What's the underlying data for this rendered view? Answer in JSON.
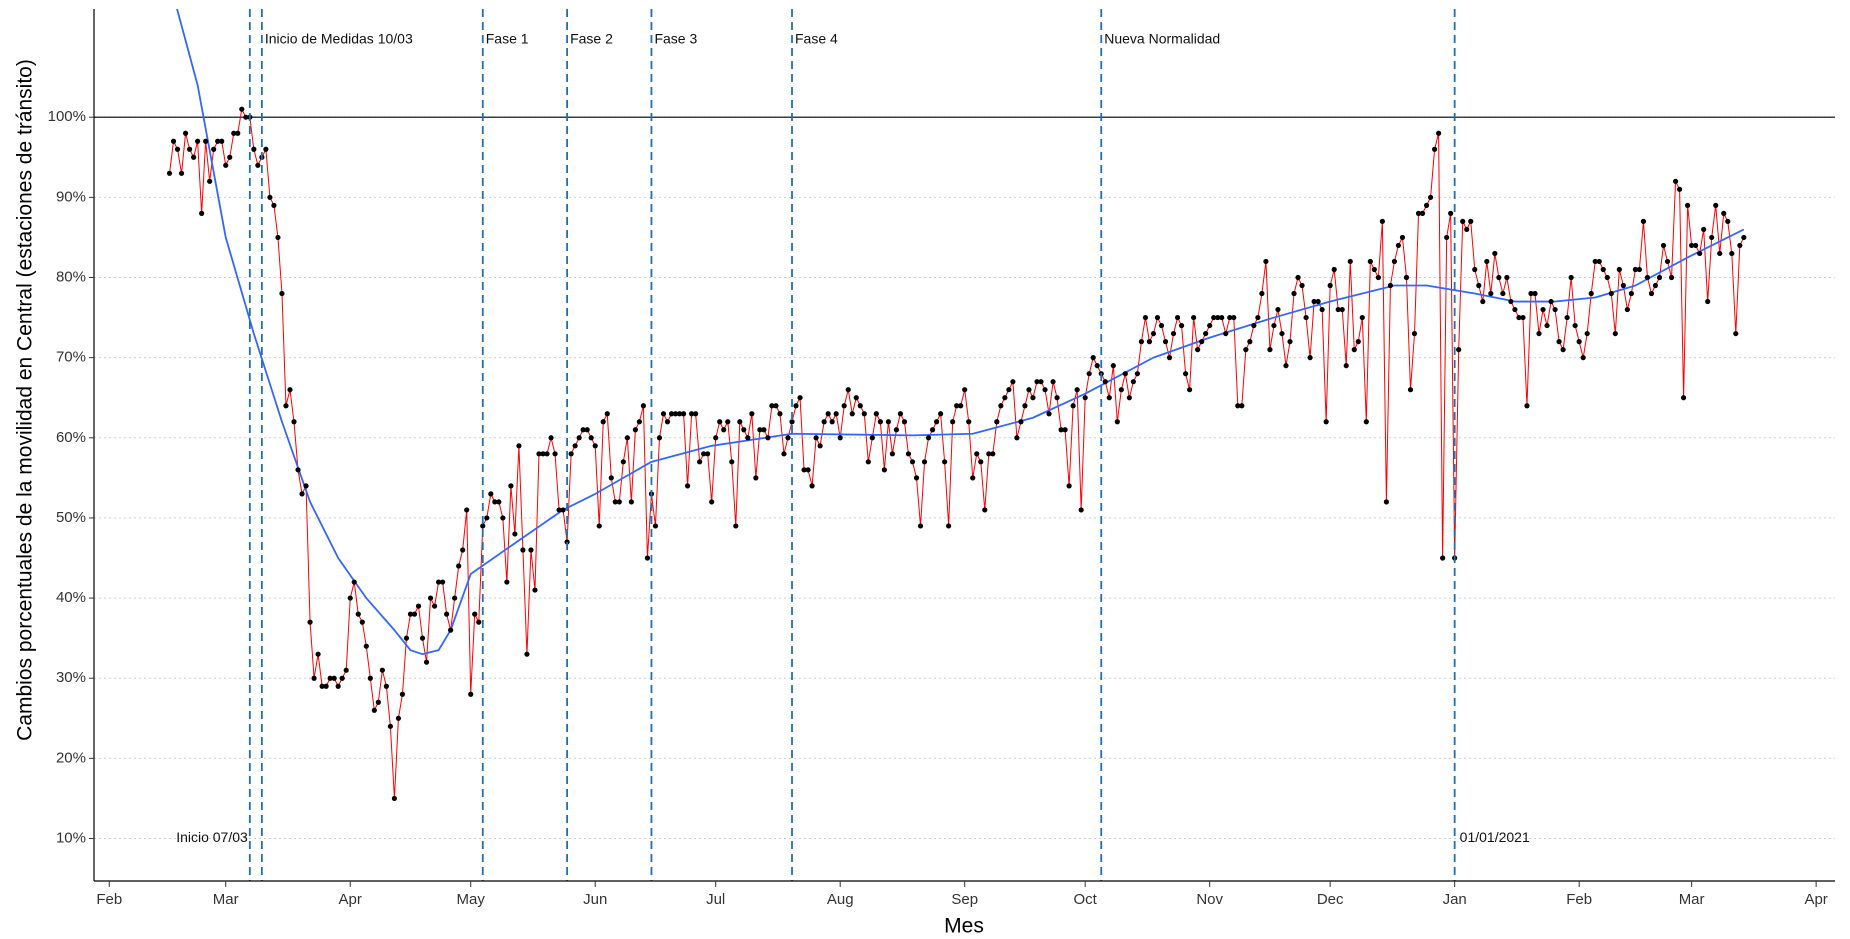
{
  "chart_data": {
    "type": "line",
    "x_label": "Mes",
    "y_label": "Cambios porcentuales de la movilidad en Central (estaciones de tránsito)",
    "xlim": [
      -3.8,
      429.7
    ],
    "ylim": [
      4.7,
      113.5
    ],
    "xticks": [
      {
        "value": 0,
        "label": "Feb"
      },
      {
        "value": 29,
        "label": "Mar"
      },
      {
        "value": 60,
        "label": "Apr"
      },
      {
        "value": 90,
        "label": "May"
      },
      {
        "value": 121,
        "label": "Jun"
      },
      {
        "value": 151,
        "label": "Jul"
      },
      {
        "value": 182,
        "label": "Aug"
      },
      {
        "value": 213,
        "label": "Sep"
      },
      {
        "value": 243,
        "label": "Oct"
      },
      {
        "value": 274,
        "label": "Nov"
      },
      {
        "value": 304,
        "label": "Dec"
      },
      {
        "value": 335,
        "label": "Jan"
      },
      {
        "value": 366,
        "label": "Feb"
      },
      {
        "value": 394,
        "label": "Mar"
      },
      {
        "value": 425,
        "label": "Apr"
      }
    ],
    "yticks": [
      {
        "value": 10,
        "label": "10%"
      },
      {
        "value": 20,
        "label": "20%"
      },
      {
        "value": 30,
        "label": "30%"
      },
      {
        "value": 40,
        "label": "40%"
      },
      {
        "value": 50,
        "label": "50%"
      },
      {
        "value": 60,
        "label": "60%"
      },
      {
        "value": 70,
        "label": "70%"
      },
      {
        "value": 80,
        "label": "80%"
      },
      {
        "value": 90,
        "label": "90%"
      },
      {
        "value": 100,
        "label": "100%"
      }
    ],
    "grid": true,
    "hline": 100,
    "hline_color": "#000000",
    "vline_color": "#1f6fb5",
    "vlines": [
      {
        "x": 35,
        "label": "Inicio 07/03",
        "position": "bottom-left"
      },
      {
        "x": 38,
        "label": "Inicio de Medidas 10/03",
        "position": "top"
      },
      {
        "x": 93,
        "label": "Fase 1",
        "position": "top"
      },
      {
        "x": 114,
        "label": "Fase 2",
        "position": "top"
      },
      {
        "x": 135,
        "label": "Fase 3",
        "position": "top"
      },
      {
        "x": 170,
        "label": "Fase 4",
        "position": "top"
      },
      {
        "x": 247,
        "label": "Nueva Normalidad",
        "position": "top"
      },
      {
        "x": 335,
        "label": "01/01/2021",
        "position": "bottom"
      }
    ],
    "observed": {
      "line_color": "#ff0000",
      "point_color": "#000000",
      "x": [
        15,
        16,
        17,
        18,
        19,
        20,
        21,
        22,
        23,
        24,
        25,
        26,
        27,
        28,
        29,
        30,
        31,
        32,
        33,
        34,
        35,
        36,
        37,
        38,
        39,
        40,
        41,
        42,
        43,
        44,
        45,
        46,
        47,
        48,
        49,
        50,
        51,
        52,
        53,
        54,
        55,
        56,
        57,
        58,
        59,
        60,
        61,
        62,
        63,
        64,
        65,
        66,
        67,
        68,
        69,
        70,
        71,
        72,
        73,
        74,
        75,
        76,
        77,
        78,
        79,
        80,
        81,
        82,
        83,
        84,
        85,
        86,
        87,
        88,
        89,
        90,
        91,
        92,
        93,
        94,
        95,
        96,
        97,
        98,
        99,
        100,
        101,
        102,
        103,
        104,
        105,
        106,
        107,
        108,
        109,
        110,
        111,
        112,
        113,
        114,
        115,
        116,
        117,
        118,
        119,
        120,
        121,
        122,
        123,
        124,
        125,
        126,
        127,
        128,
        129,
        130,
        131,
        132,
        133,
        134,
        135,
        136,
        137,
        138,
        139,
        140,
        141,
        142,
        143,
        144,
        145,
        146,
        147,
        148,
        149,
        150,
        151,
        152,
        153,
        154,
        155,
        156,
        157,
        158,
        159,
        160,
        161,
        162,
        163,
        164,
        165,
        166,
        167,
        168,
        169,
        170,
        171,
        172,
        173,
        174,
        175,
        176,
        177,
        178,
        179,
        180,
        181,
        182,
        183,
        184,
        185,
        186,
        187,
        188,
        189,
        190,
        191,
        192,
        193,
        194,
        195,
        196,
        197,
        198,
        199,
        200,
        201,
        202,
        203,
        204,
        205,
        206,
        207,
        208,
        209,
        210,
        211,
        212,
        213,
        214,
        215,
        216,
        217,
        218,
        219,
        220,
        221,
        222,
        223,
        224,
        225,
        226,
        227,
        228,
        229,
        230,
        231,
        232,
        233,
        234,
        235,
        236,
        237,
        238,
        239,
        240,
        241,
        242,
        243,
        244,
        245,
        246,
        247,
        248,
        249,
        250,
        251,
        252,
        253,
        254,
        255,
        256,
        257,
        258,
        259,
        260,
        261,
        262,
        263,
        264,
        265,
        266,
        267,
        268,
        269,
        270,
        271,
        272,
        273,
        274,
        275,
        276,
        277,
        278,
        279,
        280,
        281,
        282,
        283,
        284,
        285,
        286,
        287,
        288,
        289,
        290,
        291,
        292,
        293,
        294,
        295,
        296,
        297,
        298,
        299,
        300,
        301,
        302,
        303,
        304,
        305,
        306,
        307,
        308,
        309,
        310,
        311,
        312,
        313,
        314,
        315,
        316,
        317,
        318,
        319,
        320,
        321,
        322,
        323,
        324,
        325,
        326,
        327,
        328,
        329,
        330,
        331,
        332,
        333,
        334,
        335,
        336,
        337,
        338,
        339,
        340,
        341,
        342,
        343,
        344,
        345,
        346,
        347,
        348,
        349,
        350,
        351,
        352,
        353,
        354,
        355,
        356,
        357,
        358,
        359,
        360,
        361,
        362,
        363,
        364,
        365,
        366,
        367,
        368,
        369,
        370,
        371,
        372,
        373,
        374,
        375,
        376,
        377,
        378,
        379,
        380,
        381,
        382,
        383,
        384,
        385,
        386,
        387,
        388,
        389,
        390,
        391,
        392,
        393,
        394,
        395,
        396,
        397,
        398,
        399,
        400,
        401,
        402,
        403,
        404,
        405,
        406,
        407
      ],
      "values": [
        93,
        97,
        96,
        93,
        98,
        96,
        95,
        97,
        88,
        97,
        92,
        96,
        97,
        97,
        94,
        95,
        98,
        98,
        101,
        100,
        100,
        96,
        94,
        95,
        96,
        90,
        89,
        85,
        78,
        64,
        66,
        62,
        56,
        53,
        54,
        37,
        30,
        33,
        29,
        29,
        30,
        30,
        29,
        30,
        31,
        40,
        42,
        38,
        37,
        34,
        30,
        26,
        27,
        31,
        29,
        24,
        15,
        25,
        28,
        35,
        38,
        38,
        39,
        35,
        32,
        40,
        39,
        42,
        42,
        38,
        36,
        40,
        44,
        46,
        51,
        28,
        38,
        37,
        49,
        50,
        53,
        52,
        52,
        50,
        42,
        54,
        48,
        59,
        46,
        33,
        46,
        41,
        58,
        58,
        58,
        60,
        58,
        51,
        51,
        47,
        58,
        59,
        60,
        61,
        61,
        60,
        59,
        49,
        62,
        63,
        55,
        52,
        52,
        57,
        60,
        52,
        61,
        62,
        64,
        45,
        53,
        49,
        60,
        63,
        62,
        63,
        63,
        63,
        63,
        54,
        63,
        63,
        57,
        58,
        58,
        52,
        60,
        62,
        61,
        62,
        57,
        49,
        62,
        61,
        60,
        63,
        55,
        61,
        61,
        60,
        64,
        64,
        63,
        58,
        60,
        62,
        64,
        65,
        56,
        56,
        54,
        60,
        59,
        62,
        63,
        62,
        63,
        60,
        64,
        66,
        63,
        65,
        64,
        63,
        57,
        60,
        63,
        62,
        56,
        62,
        58,
        61,
        63,
        62,
        58,
        57,
        55,
        49,
        57,
        60,
        61,
        62,
        63,
        57,
        49,
        62,
        64,
        64,
        66,
        62,
        55,
        58,
        57,
        51,
        58,
        58,
        62,
        64,
        65,
        66,
        67,
        60,
        62,
        64,
        66,
        65,
        67,
        67,
        66,
        63,
        67,
        65,
        61,
        61,
        54,
        64,
        66,
        51,
        65,
        68,
        70,
        69,
        68,
        67,
        65,
        69,
        62,
        66,
        68,
        65,
        67,
        68,
        72,
        75,
        72,
        73,
        75,
        74,
        72,
        70,
        73,
        75,
        74,
        68,
        66,
        75,
        71,
        72,
        73,
        74,
        75,
        75,
        75,
        73,
        75,
        75,
        64,
        64,
        71,
        72,
        74,
        75,
        78,
        82,
        71,
        74,
        76,
        73,
        69,
        72,
        78,
        80,
        79,
        75,
        70,
        77,
        77,
        76,
        62,
        79,
        81,
        76,
        76,
        69,
        82,
        71,
        72,
        75,
        62,
        82,
        81,
        80,
        87,
        52,
        79,
        82,
        84,
        85,
        80,
        66,
        73,
        88,
        88,
        89,
        90,
        96,
        98,
        45,
        85,
        88,
        45,
        71,
        87,
        86,
        87,
        81,
        79,
        77,
        82,
        78,
        83,
        80,
        78,
        80,
        77,
        76,
        75,
        75,
        64,
        78,
        78,
        73,
        76,
        74,
        77,
        76,
        72,
        71,
        75,
        80,
        74,
        72,
        70,
        73,
        78,
        82,
        82,
        81,
        80,
        78,
        73,
        81,
        79,
        76,
        78,
        81,
        81,
        87,
        80,
        78,
        79,
        80,
        84,
        82,
        80,
        92,
        91,
        65,
        89,
        84,
        84,
        83,
        86,
        77,
        85,
        89,
        83,
        88,
        87,
        83,
        73,
        84,
        85
      ]
    },
    "smooth": {
      "color": "#3366ff",
      "x": [
        15,
        22,
        29,
        36,
        43,
        50,
        57,
        64,
        71,
        75,
        78,
        82,
        85,
        90,
        100,
        113,
        121,
        135,
        150,
        170,
        200,
        215,
        230,
        243,
        260,
        274,
        290,
        304,
        320,
        328,
        340,
        350,
        360,
        370,
        380,
        393,
        407
      ],
      "values": [
        117,
        104,
        85,
        73,
        62,
        52,
        45,
        40,
        36,
        33.5,
        33,
        33.5,
        36,
        43,
        46.5,
        51,
        53,
        57,
        59,
        60.5,
        60.3,
        60.5,
        62.5,
        65.5,
        70,
        72.5,
        75,
        77,
        79,
        79,
        78,
        77,
        77,
        77.5,
        79,
        82.5,
        86
      ]
    }
  }
}
